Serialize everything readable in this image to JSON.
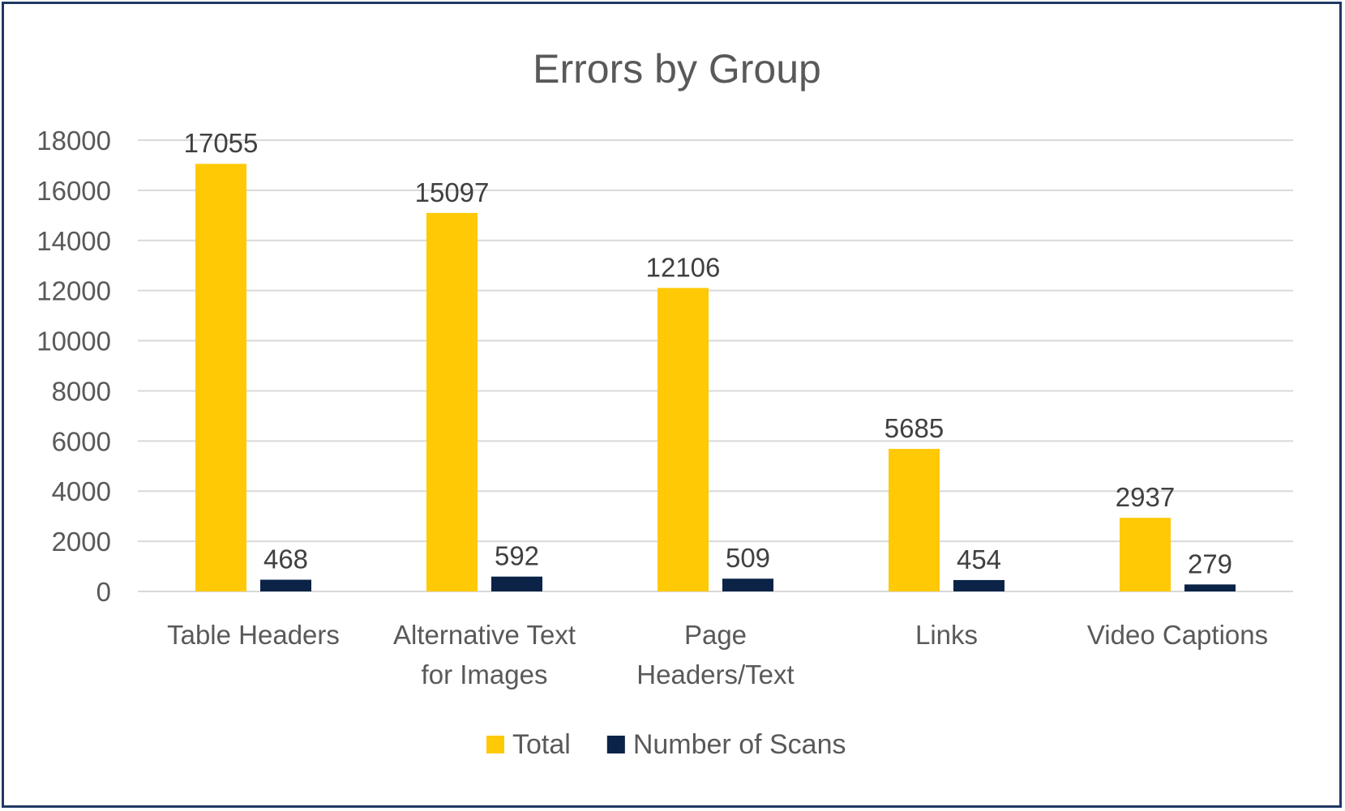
{
  "chart_data": {
    "type": "bar",
    "title": "Errors by Group",
    "categories": [
      [
        "Table Headers"
      ],
      [
        "Alternative Text",
        "for Images"
      ],
      [
        "Page",
        "Headers/Text"
      ],
      [
        "Links"
      ],
      [
        "Video Captions"
      ]
    ],
    "series": [
      {
        "name": "Total",
        "color": "#ffc905",
        "values": [
          17055,
          15097,
          12106,
          5685,
          2937
        ]
      },
      {
        "name": "Number of Scans",
        "color": "#0a2347",
        "values": [
          468,
          592,
          509,
          454,
          279
        ]
      }
    ],
    "ylim": [
      0,
      18000
    ],
    "yticks": [
      "0",
      "2000",
      "4000",
      "6000",
      "8000",
      "10000",
      "12000",
      "14000",
      "16000",
      "18000"
    ],
    "grid": true,
    "legend_position": "bottom"
  }
}
